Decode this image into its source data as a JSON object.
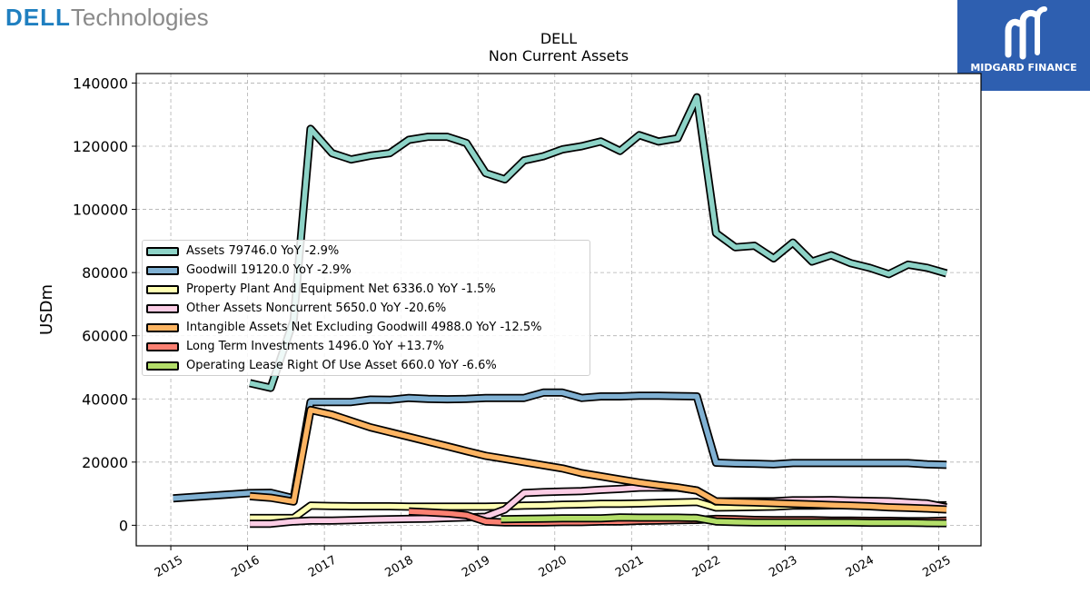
{
  "brand": {
    "part1": "DELL",
    "part2": "Technologies"
  },
  "watermark": {
    "text": "MIDGARD FINANCE"
  },
  "chart_data": {
    "type": "line",
    "title": "DELL",
    "subtitle": "Non Current  Assets",
    "ylabel": "USDm",
    "xlabel": "",
    "xlim": [
      2014.55,
      2025.55
    ],
    "ylim": [
      -6500,
      143000
    ],
    "grid": true,
    "legend_position": "center-left",
    "x_ticks": [
      2015,
      2016,
      2017,
      2018,
      2019,
      2020,
      2021,
      2022,
      2023,
      2024,
      2025
    ],
    "x_tick_labels": [
      "2015",
      "2016",
      "2017",
      "2018",
      "2019",
      "2020",
      "2021",
      "2022",
      "2023",
      "2024",
      "2025"
    ],
    "y_ticks": [
      0,
      20000,
      40000,
      60000,
      80000,
      100000,
      120000,
      140000
    ],
    "y_tick_labels": [
      "0",
      "20000",
      "40000",
      "60000",
      "80000",
      "100000",
      "120000",
      "140000"
    ],
    "series": [
      {
        "name": "Assets",
        "legend": "Assets  79746.0 YoY -2.9%",
        "color": "#8dd3c7",
        "points": [
          [
            2016.03,
            45000
          ],
          [
            2016.3,
            43500
          ],
          [
            2016.6,
            65000
          ],
          [
            2016.82,
            125500
          ],
          [
            2017.1,
            117800
          ],
          [
            2017.35,
            115800
          ],
          [
            2017.6,
            117000
          ],
          [
            2017.85,
            117800
          ],
          [
            2018.1,
            122000
          ],
          [
            2018.35,
            123000
          ],
          [
            2018.6,
            123000
          ],
          [
            2018.85,
            121000
          ],
          [
            2019.1,
            111500
          ],
          [
            2019.35,
            109500
          ],
          [
            2019.6,
            115500
          ],
          [
            2019.85,
            116800
          ],
          [
            2020.1,
            119000
          ],
          [
            2020.35,
            120000
          ],
          [
            2020.6,
            121500
          ],
          [
            2020.85,
            118500
          ],
          [
            2021.1,
            123500
          ],
          [
            2021.35,
            121500
          ],
          [
            2021.6,
            122500
          ],
          [
            2021.85,
            135500
          ],
          [
            2022.1,
            92500
          ],
          [
            2022.35,
            88000
          ],
          [
            2022.6,
            88500
          ],
          [
            2022.85,
            84500
          ],
          [
            2023.1,
            89500
          ],
          [
            2023.35,
            83500
          ],
          [
            2023.6,
            85500
          ],
          [
            2023.85,
            83000
          ],
          [
            2024.1,
            81500
          ],
          [
            2024.35,
            79500
          ],
          [
            2024.6,
            82500
          ],
          [
            2024.85,
            81500
          ],
          [
            2025.1,
            79746
          ]
        ]
      },
      {
        "name": "Goodwill",
        "legend": "Goodwill  19120.0 YoY -2.9%",
        "color": "#80b1d3",
        "points": [
          [
            2015.03,
            8500
          ],
          [
            2016.03,
            10200
          ],
          [
            2016.3,
            10300
          ],
          [
            2016.6,
            8500
          ],
          [
            2016.82,
            39000
          ],
          [
            2017.1,
            39000
          ],
          [
            2017.35,
            39000
          ],
          [
            2017.6,
            39800
          ],
          [
            2017.85,
            39700
          ],
          [
            2018.1,
            40300
          ],
          [
            2018.35,
            40000
          ],
          [
            2018.6,
            39900
          ],
          [
            2018.85,
            40000
          ],
          [
            2019.1,
            40300
          ],
          [
            2019.35,
            40300
          ],
          [
            2019.6,
            40300
          ],
          [
            2019.85,
            42000
          ],
          [
            2020.1,
            42000
          ],
          [
            2020.35,
            40300
          ],
          [
            2020.6,
            40800
          ],
          [
            2020.85,
            40800
          ],
          [
            2021.1,
            41000
          ],
          [
            2021.35,
            41000
          ],
          [
            2021.6,
            40900
          ],
          [
            2021.85,
            40800
          ],
          [
            2022.1,
            19800
          ],
          [
            2022.35,
            19600
          ],
          [
            2022.6,
            19500
          ],
          [
            2022.85,
            19300
          ],
          [
            2023.1,
            19700
          ],
          [
            2023.35,
            19700
          ],
          [
            2023.6,
            19700
          ],
          [
            2023.85,
            19700
          ],
          [
            2024.1,
            19700
          ],
          [
            2024.35,
            19700
          ],
          [
            2024.6,
            19700
          ],
          [
            2024.85,
            19300
          ],
          [
            2025.1,
            19120
          ]
        ]
      },
      {
        "name": "Property Plant And Equipment Net",
        "legend": "Property Plant And Equipment Net  6336.0 YoY -1.5%",
        "color": "#ffffb3",
        "points": [
          [
            2016.03,
            2300
          ],
          [
            2016.3,
            2300
          ],
          [
            2016.6,
            2300
          ],
          [
            2016.82,
            6200
          ],
          [
            2017.1,
            6100
          ],
          [
            2017.35,
            6000
          ],
          [
            2017.6,
            6000
          ],
          [
            2017.85,
            6000
          ],
          [
            2018.1,
            5900
          ],
          [
            2018.35,
            5900
          ],
          [
            2018.6,
            5900
          ],
          [
            2018.85,
            5900
          ],
          [
            2019.1,
            5900
          ],
          [
            2019.35,
            6000
          ],
          [
            2019.6,
            6200
          ],
          [
            2019.85,
            6300
          ],
          [
            2020.1,
            6500
          ],
          [
            2020.35,
            6600
          ],
          [
            2020.6,
            6800
          ],
          [
            2020.85,
            6800
          ],
          [
            2021.1,
            6900
          ],
          [
            2021.35,
            7100
          ],
          [
            2021.6,
            7200
          ],
          [
            2021.85,
            7400
          ],
          [
            2022.1,
            5600
          ],
          [
            2022.35,
            5700
          ],
          [
            2022.6,
            5800
          ],
          [
            2022.85,
            5900
          ],
          [
            2023.1,
            6200
          ],
          [
            2023.35,
            6200
          ],
          [
            2023.6,
            6300
          ],
          [
            2023.85,
            6400
          ],
          [
            2024.1,
            6400
          ],
          [
            2024.35,
            6400
          ],
          [
            2024.6,
            6300
          ],
          [
            2024.85,
            6300
          ],
          [
            2025.1,
            6336
          ]
        ]
      },
      {
        "name": "Other Assets Noncurrent",
        "legend": "Other Assets Noncurrent  5650.0 YoY -20.6%",
        "color": "#fccde5",
        "points": [
          [
            2016.03,
            500
          ],
          [
            2016.3,
            500
          ],
          [
            2016.6,
            1200
          ],
          [
            2016.82,
            1500
          ],
          [
            2017.1,
            1500
          ],
          [
            2017.35,
            1600
          ],
          [
            2017.6,
            1800
          ],
          [
            2017.85,
            1900
          ],
          [
            2018.1,
            2000
          ],
          [
            2018.35,
            2100
          ],
          [
            2018.6,
            2300
          ],
          [
            2018.85,
            2500
          ],
          [
            2019.1,
            2700
          ],
          [
            2019.35,
            5000
          ],
          [
            2019.6,
            10200
          ],
          [
            2019.85,
            10500
          ],
          [
            2020.1,
            10700
          ],
          [
            2020.35,
            10800
          ],
          [
            2020.6,
            11200
          ],
          [
            2020.85,
            11500
          ],
          [
            2021.1,
            11900
          ],
          [
            2021.35,
            12000
          ],
          [
            2021.6,
            11900
          ],
          [
            2021.85,
            11000
          ],
          [
            2022.1,
            7500
          ],
          [
            2022.35,
            7600
          ],
          [
            2022.6,
            7600
          ],
          [
            2022.85,
            7600
          ],
          [
            2023.1,
            7900
          ],
          [
            2023.35,
            7900
          ],
          [
            2023.6,
            8000
          ],
          [
            2023.85,
            7800
          ],
          [
            2024.1,
            7700
          ],
          [
            2024.35,
            7600
          ],
          [
            2024.6,
            7200
          ],
          [
            2024.85,
            6900
          ],
          [
            2025.1,
            5650
          ]
        ]
      },
      {
        "name": "Intangible Assets Net Excluding Goodwill",
        "legend": "Intangible Assets Net Excluding Goodwill  4988.0 YoY -12.5%",
        "color": "#fdb462",
        "points": [
          [
            2016.03,
            9200
          ],
          [
            2016.3,
            8700
          ],
          [
            2016.6,
            7500
          ],
          [
            2016.82,
            36500
          ],
          [
            2017.1,
            35000
          ],
          [
            2017.35,
            33000
          ],
          [
            2017.6,
            31000
          ],
          [
            2017.85,
            29500
          ],
          [
            2018.1,
            28000
          ],
          [
            2018.35,
            26500
          ],
          [
            2018.6,
            25000
          ],
          [
            2018.85,
            23500
          ],
          [
            2019.1,
            22000
          ],
          [
            2019.35,
            21000
          ],
          [
            2019.6,
            20000
          ],
          [
            2019.85,
            19000
          ],
          [
            2020.1,
            18000
          ],
          [
            2020.35,
            16500
          ],
          [
            2020.6,
            15500
          ],
          [
            2020.85,
            14500
          ],
          [
            2021.1,
            13500
          ],
          [
            2021.35,
            12700
          ],
          [
            2021.6,
            12000
          ],
          [
            2021.85,
            11000
          ],
          [
            2022.1,
            7600
          ],
          [
            2022.35,
            7400
          ],
          [
            2022.6,
            7200
          ],
          [
            2022.85,
            7000
          ],
          [
            2023.1,
            6800
          ],
          [
            2023.35,
            6600
          ],
          [
            2023.6,
            6400
          ],
          [
            2023.85,
            6200
          ],
          [
            2024.1,
            6000
          ],
          [
            2024.35,
            5700
          ],
          [
            2024.6,
            5500
          ],
          [
            2024.85,
            5300
          ],
          [
            2025.1,
            4988
          ]
        ]
      },
      {
        "name": "Long Term Investments",
        "legend": "Long Term Investments  1496.0 YoY +13.7%",
        "color": "#fb8072",
        "points": [
          [
            2018.1,
            4400
          ],
          [
            2018.35,
            4100
          ],
          [
            2018.6,
            3800
          ],
          [
            2018.85,
            3200
          ],
          [
            2019.1,
            1200
          ],
          [
            2019.35,
            900
          ],
          [
            2019.6,
            900
          ],
          [
            2019.85,
            900
          ],
          [
            2020.1,
            1000
          ],
          [
            2020.35,
            1000
          ],
          [
            2020.6,
            1200
          ],
          [
            2020.85,
            1200
          ],
          [
            2021.1,
            1400
          ],
          [
            2021.35,
            1500
          ],
          [
            2021.6,
            1600
          ],
          [
            2021.85,
            1700
          ],
          [
            2022.1,
            2000
          ],
          [
            2022.35,
            1900
          ],
          [
            2022.6,
            1700
          ],
          [
            2022.85,
            1600
          ],
          [
            2023.1,
            1600
          ],
          [
            2023.35,
            1600
          ],
          [
            2023.6,
            1500
          ],
          [
            2023.85,
            1500
          ],
          [
            2024.1,
            1400
          ],
          [
            2024.35,
            1400
          ],
          [
            2024.6,
            1300
          ],
          [
            2024.85,
            1300
          ],
          [
            2025.1,
            1496
          ]
        ]
      },
      {
        "name": "Operating Lease Right Of Use Asset",
        "legend": "Operating Lease Right Of Use Asset  660.0 YoY -6.6%",
        "color": "#b3de69",
        "points": [
          [
            2019.3,
            1900
          ],
          [
            2019.6,
            2000
          ],
          [
            2019.85,
            2100
          ],
          [
            2020.1,
            2200
          ],
          [
            2020.35,
            2200
          ],
          [
            2020.6,
            2200
          ],
          [
            2020.85,
            2500
          ],
          [
            2021.1,
            2400
          ],
          [
            2021.35,
            2400
          ],
          [
            2021.6,
            2400
          ],
          [
            2021.85,
            2300
          ],
          [
            2022.1,
            1200
          ],
          [
            2022.35,
            1000
          ],
          [
            2022.6,
            900
          ],
          [
            2022.85,
            900
          ],
          [
            2023.1,
            900
          ],
          [
            2023.35,
            900
          ],
          [
            2023.6,
            900
          ],
          [
            2023.85,
            900
          ],
          [
            2024.1,
            800
          ],
          [
            2024.35,
            800
          ],
          [
            2024.6,
            800
          ],
          [
            2024.85,
            700
          ],
          [
            2025.1,
            660
          ]
        ]
      }
    ]
  }
}
